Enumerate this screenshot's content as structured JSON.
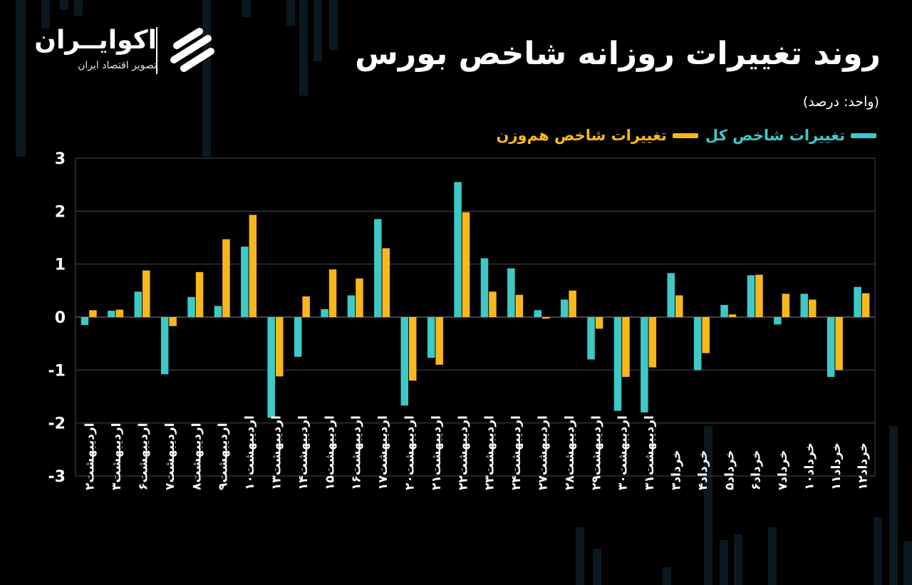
{
  "header": {
    "title": "روند تغییرات روزانه شاخص بورس",
    "unit": "(واحد: درصد)"
  },
  "brand": {
    "name": "اکوایــران",
    "tagline": "تصویر اقتصاد ایران"
  },
  "legend": {
    "series_total": "تغییرات شاخص کل",
    "series_equal": "تغییرات شاخص هم‌وزن"
  },
  "colors": {
    "total": "#3ec9c6",
    "equal": "#f8b81c",
    "grid": "#4a4a4a",
    "axis": "#8a8a8a"
  },
  "icons": {
    "logo": "ecoiran-logo-icon"
  },
  "chart_data": {
    "type": "bar",
    "categories": [
      "اردیبهشت۲",
      "اردیبهشت۳",
      "اردیبهشت۶",
      "اردیبهشت۷",
      "اردیبهشت۸",
      "اردیبهشت۹",
      "اردیبهشت۱۰",
      "اردیبهشت۱۳",
      "اردیبهشت۱۴",
      "اردیبهشت۱۵",
      "اردیبهشت۱۶",
      "اردیبهشت۱۷",
      "اردیبهشت۲۰",
      "اردیبهشت۲۱",
      "اردیبهشت۲۲",
      "اردیبهشت۲۳",
      "اردیبهشت۲۴",
      "اردیبهشت۲۷",
      "اردیبهشت۲۸",
      "اردیبهشت۲۹",
      "اردیبهشت۳۰",
      "اردیبهشت۳۱",
      "خرداد۳",
      "خرداد۴",
      "خرداد۵",
      "خرداد۶",
      "خرداد۷",
      "خرداد۱۰",
      "خرداد۱۱",
      "خرداد۱۲"
    ],
    "series": [
      {
        "name": "تغییرات شاخص کل",
        "values": [
          -0.15,
          0.12,
          0.48,
          -1.08,
          0.38,
          0.21,
          1.33,
          -1.9,
          -0.75,
          0.15,
          0.41,
          1.85,
          -1.67,
          -0.77,
          2.55,
          1.11,
          0.92,
          0.13,
          0.33,
          -0.8,
          -1.77,
          -1.8,
          0.83,
          -1.0,
          0.23,
          0.79,
          -0.14,
          0.44,
          -1.13,
          0.57
        ]
      },
      {
        "name": "تغییرات شاخص هم‌وزن",
        "values": [
          0.13,
          0.14,
          0.88,
          -0.17,
          0.85,
          1.47,
          1.93,
          -1.12,
          0.39,
          0.9,
          0.73,
          1.3,
          -1.2,
          -0.9,
          1.98,
          0.48,
          0.42,
          -0.03,
          0.5,
          -0.22,
          -1.13,
          -0.95,
          0.41,
          -0.68,
          0.05,
          0.8,
          0.44,
          0.33,
          -1.0,
          0.45
        ]
      }
    ],
    "y_ticks": [
      "-3",
      "-2",
      "-1",
      "0",
      "1",
      "2",
      "3"
    ],
    "ylim": [
      -3,
      3
    ],
    "xlabel": "",
    "ylabel": "",
    "grid": true,
    "legend_position": "top-right"
  }
}
